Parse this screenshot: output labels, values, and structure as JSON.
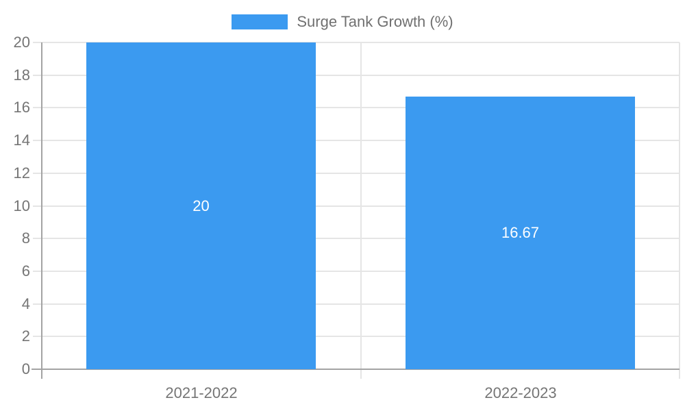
{
  "chart_data": {
    "type": "bar",
    "title": "",
    "legend": "Surge Tank Growth (%)",
    "legend_position": "top-center",
    "categories": [
      "2021-2022",
      "2022-2023"
    ],
    "values": [
      20,
      16.67
    ],
    "value_labels": [
      "20",
      "16.67"
    ],
    "xlabel": "",
    "ylabel": "",
    "ylim": [
      0,
      20
    ],
    "yticks": [
      0,
      2,
      4,
      6,
      8,
      10,
      12,
      14,
      16,
      18,
      20
    ],
    "grid": true,
    "colors": {
      "bar": "#3b9af0",
      "grid": "#e5e5e5",
      "axis": "#a3a3a3",
      "tick_label": "#757575",
      "legend_text": "#707070",
      "value_label": "#ffffff",
      "background": "#ffffff"
    }
  }
}
